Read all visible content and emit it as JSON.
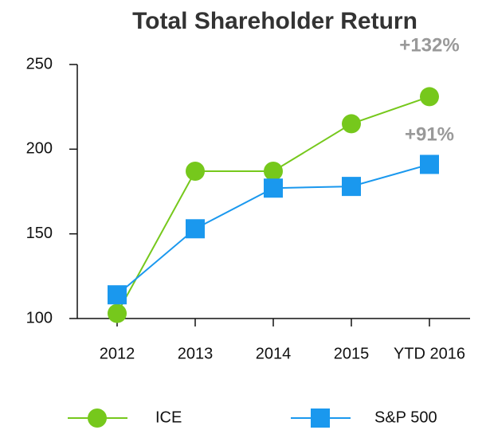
{
  "chart_data": {
    "type": "line",
    "title": "Total Shareholder Return",
    "categories": [
      "2012",
      "2013",
      "2014",
      "2015",
      "YTD 2016"
    ],
    "series": [
      {
        "name": "ICE",
        "color": "#76c81c",
        "marker": "circle",
        "values": [
          103,
          187,
          187,
          215,
          231
        ]
      },
      {
        "name": "S&P 500",
        "color": "#1a98ee",
        "marker": "square",
        "values": [
          114,
          153,
          177,
          178,
          191
        ]
      }
    ],
    "annotations": [
      "+132%",
      "+91%"
    ],
    "ylim": [
      100,
      250
    ],
    "yticks": [
      100,
      150,
      200,
      250
    ],
    "grid": false,
    "legend": "bottom"
  }
}
